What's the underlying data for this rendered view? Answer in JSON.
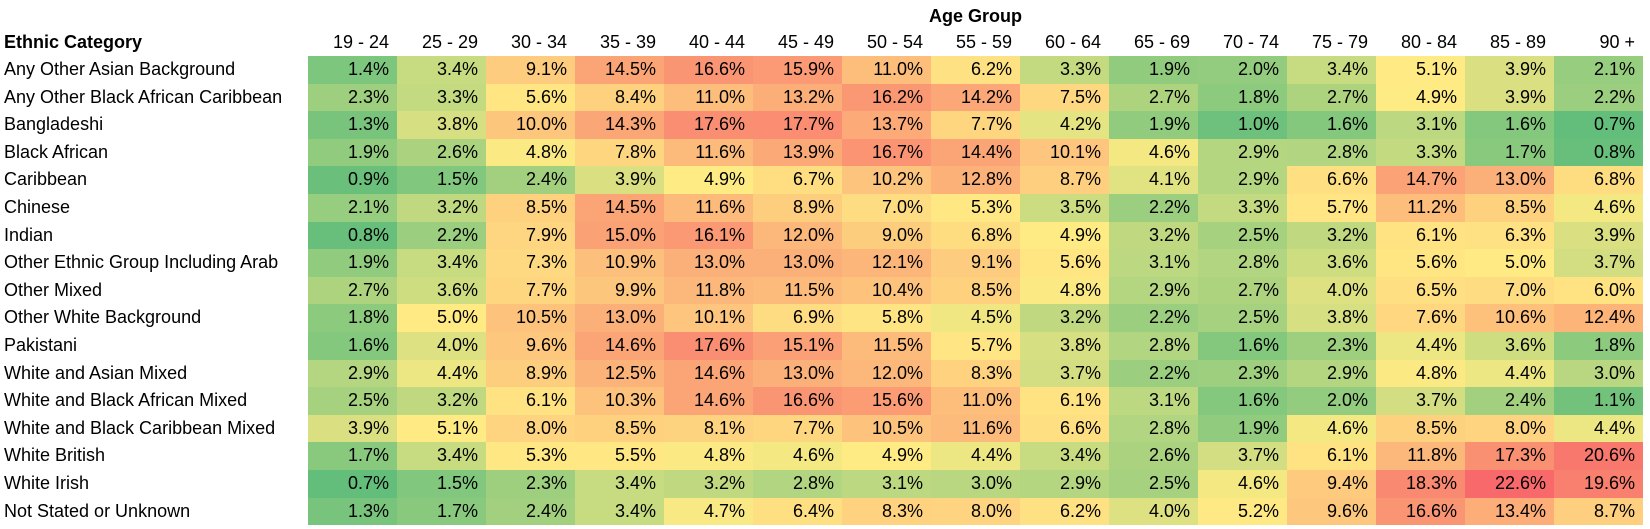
{
  "chart_data": {
    "type": "heatmap",
    "title": "",
    "column_group_label": "Age Group",
    "row_header": "Ethnic Category",
    "columns": [
      "19 - 24",
      "25 - 29",
      "30 - 34",
      "35 - 39",
      "40 - 44",
      "45 - 49",
      "50 - 54",
      "55 - 59",
      "60 - 64",
      "65 - 69",
      "70 - 74",
      "75 - 79",
      "80 - 84",
      "85 - 89",
      "90 +"
    ],
    "rows": [
      "Any Other Asian Background",
      "Any Other Black African Caribbean",
      "Bangladeshi",
      "Black African",
      "Caribbean",
      "Chinese",
      "Indian",
      "Other Ethnic Group Including Arab",
      "Other Mixed",
      "Other White Background",
      "Pakistani",
      "White and Asian Mixed",
      "White and Black African Mixed",
      "White and Black Caribbean Mixed",
      "White British",
      "White Irish",
      "Not Stated or Unknown"
    ],
    "values": [
      [
        1.4,
        3.4,
        9.1,
        14.5,
        16.6,
        15.9,
        11.0,
        6.2,
        3.3,
        1.9,
        2.0,
        3.4,
        5.1,
        3.9,
        2.1
      ],
      [
        2.3,
        3.3,
        5.6,
        8.4,
        11.0,
        13.2,
        16.2,
        14.2,
        7.5,
        2.7,
        1.8,
        2.7,
        4.9,
        3.9,
        2.2
      ],
      [
        1.3,
        3.8,
        10.0,
        14.3,
        17.6,
        17.7,
        13.7,
        7.7,
        4.2,
        1.9,
        1.0,
        1.6,
        3.1,
        1.6,
        0.7
      ],
      [
        1.9,
        2.6,
        4.8,
        7.8,
        11.6,
        13.9,
        16.7,
        14.4,
        10.1,
        4.6,
        2.9,
        2.8,
        3.3,
        1.7,
        0.8
      ],
      [
        0.9,
        1.5,
        2.4,
        3.9,
        4.9,
        6.7,
        10.2,
        12.8,
        8.7,
        4.1,
        2.9,
        6.6,
        14.7,
        13.0,
        6.8
      ],
      [
        2.1,
        3.2,
        8.5,
        14.5,
        11.6,
        8.9,
        7.0,
        5.3,
        3.5,
        2.2,
        3.3,
        5.7,
        11.2,
        8.5,
        4.6
      ],
      [
        0.8,
        2.2,
        7.9,
        15.0,
        16.1,
        12.0,
        9.0,
        6.8,
        4.9,
        3.2,
        2.5,
        3.2,
        6.1,
        6.3,
        3.9
      ],
      [
        1.9,
        3.4,
        7.3,
        10.9,
        13.0,
        13.0,
        12.1,
        9.1,
        5.6,
        3.1,
        2.8,
        3.6,
        5.6,
        5.0,
        3.7
      ],
      [
        2.7,
        3.6,
        7.7,
        9.9,
        11.8,
        11.5,
        10.4,
        8.5,
        4.8,
        2.9,
        2.7,
        4.0,
        6.5,
        7.0,
        6.0
      ],
      [
        1.8,
        5.0,
        10.5,
        13.0,
        10.1,
        6.9,
        5.8,
        4.5,
        3.2,
        2.2,
        2.5,
        3.8,
        7.6,
        10.6,
        12.4
      ],
      [
        1.6,
        4.0,
        9.6,
        14.6,
        17.6,
        15.1,
        11.5,
        5.7,
        3.8,
        2.8,
        1.6,
        2.3,
        4.4,
        3.6,
        1.8
      ],
      [
        2.9,
        4.4,
        8.9,
        12.5,
        14.6,
        13.0,
        12.0,
        8.3,
        3.7,
        2.2,
        2.3,
        2.9,
        4.8,
        4.4,
        3.0
      ],
      [
        2.5,
        3.2,
        6.1,
        10.3,
        14.6,
        16.6,
        15.6,
        11.0,
        6.1,
        3.1,
        1.6,
        2.0,
        3.7,
        2.4,
        1.1
      ],
      [
        3.9,
        5.1,
        8.0,
        8.5,
        8.1,
        7.7,
        10.5,
        11.6,
        6.6,
        2.8,
        1.9,
        4.6,
        8.5,
        8.0,
        4.4
      ],
      [
        1.7,
        3.4,
        5.3,
        5.5,
        4.8,
        4.6,
        4.9,
        4.4,
        3.4,
        2.6,
        3.7,
        6.1,
        11.8,
        17.3,
        20.6
      ],
      [
        0.7,
        1.5,
        2.3,
        3.4,
        3.2,
        2.8,
        3.1,
        3.0,
        2.9,
        2.5,
        4.6,
        9.4,
        18.3,
        22.6,
        19.6
      ],
      [
        1.3,
        1.7,
        2.4,
        3.4,
        4.7,
        6.4,
        8.3,
        8.0,
        6.2,
        4.0,
        5.2,
        9.6,
        16.6,
        13.4,
        8.7
      ]
    ],
    "value_format": "percent_1dp",
    "color_scale": {
      "type": "diverging",
      "low": "#63be7b",
      "mid": "#ffeb84",
      "high": "#f8696b"
    },
    "grid": false,
    "legend": "none"
  }
}
